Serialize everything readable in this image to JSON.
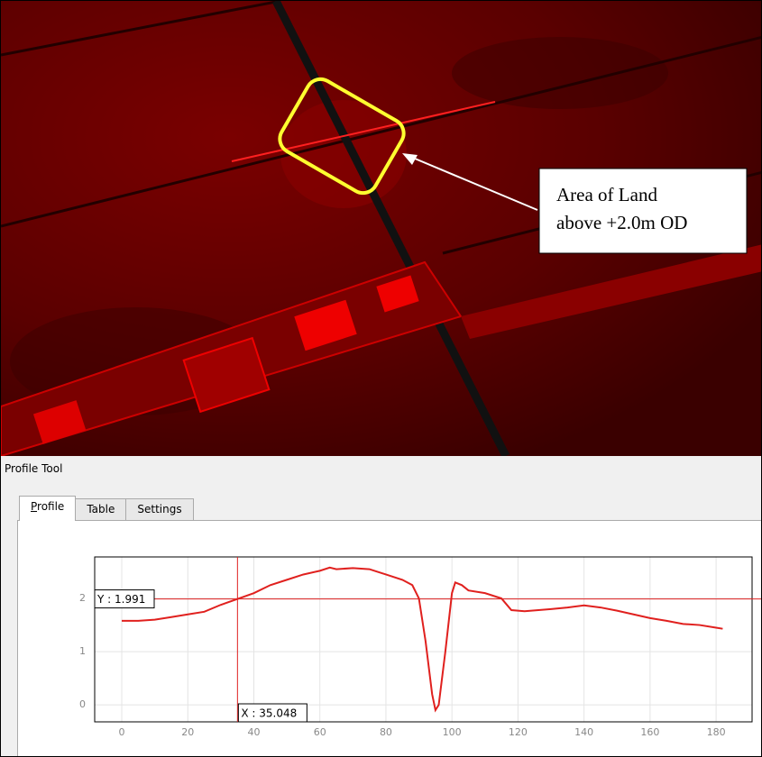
{
  "map": {
    "annotation": [
      "Area of Land",
      "above +2.0m OD"
    ]
  },
  "panel": {
    "title": "Profile Tool",
    "tabs": [
      "Profile",
      "Table",
      "Settings"
    ]
  },
  "chart_data": {
    "type": "line",
    "color": "#e0201e",
    "x": [
      0,
      5,
      10,
      15,
      20,
      25,
      30,
      35,
      40,
      45,
      50,
      55,
      60,
      63,
      65,
      70,
      75,
      80,
      85,
      88,
      90,
      92,
      94,
      95,
      96,
      98,
      100,
      101,
      103,
      105,
      110,
      115,
      118,
      122,
      130,
      135,
      140,
      145,
      150,
      155,
      160,
      165,
      170,
      175,
      180,
      182
    ],
    "values": [
      1.58,
      1.58,
      1.6,
      1.65,
      1.7,
      1.75,
      1.88,
      1.99,
      2.1,
      2.25,
      2.35,
      2.45,
      2.52,
      2.58,
      2.55,
      2.57,
      2.55,
      2.45,
      2.35,
      2.25,
      2.0,
      1.2,
      0.2,
      -0.1,
      0.0,
      1.0,
      2.1,
      2.3,
      2.25,
      2.15,
      2.1,
      2.0,
      1.78,
      1.76,
      1.8,
      1.83,
      1.87,
      1.83,
      1.77,
      1.7,
      1.63,
      1.58,
      1.52,
      1.5,
      1.45,
      1.43
    ],
    "xlim": [
      -8.2,
      190.9
    ],
    "ylim": [
      -0.32,
      2.78
    ],
    "xticks": [
      0,
      20,
      40,
      60,
      80,
      100,
      120,
      140,
      160,
      180
    ],
    "yticks": [
      0,
      1,
      2
    ],
    "grid": true,
    "cursor": {
      "x": {
        "value": 35.048,
        "label": "X : 35.048"
      },
      "y": {
        "value": 1.991,
        "label": "Y : 1.991"
      }
    }
  }
}
